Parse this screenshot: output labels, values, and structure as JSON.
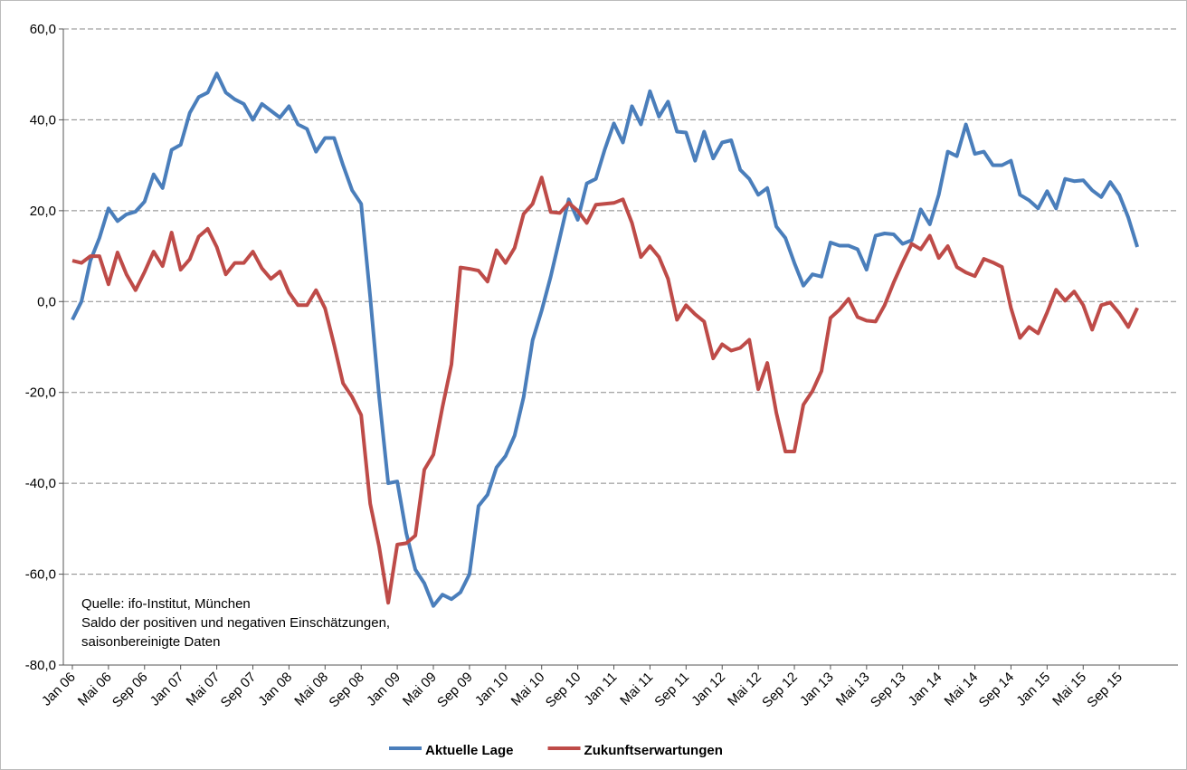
{
  "chart_data": {
    "type": "line",
    "annotation": [
      "Quelle: ifo-Institut, München",
      "Saldo der positiven und negativen Einschätzungen,",
      "saisonbereinigte Daten"
    ],
    "categories": [
      "Jan 06",
      null,
      null,
      null,
      "Mai 06",
      null,
      null,
      null,
      "Sep 06",
      null,
      null,
      null,
      "Jan 07",
      null,
      null,
      null,
      "Mai 07",
      null,
      null,
      null,
      "Sep 07",
      null,
      null,
      null,
      "Jan 08",
      null,
      null,
      null,
      "Mai 08",
      null,
      null,
      null,
      "Sep 08",
      null,
      null,
      null,
      "Jan 09",
      null,
      null,
      null,
      "Mai 09",
      null,
      null,
      null,
      "Sep 09",
      null,
      null,
      null,
      "Jan 10",
      null,
      null,
      null,
      "Mai 10",
      null,
      null,
      null,
      "Sep 10",
      null,
      null,
      null,
      "Jan 11",
      null,
      null,
      null,
      "Mai 11",
      null,
      null,
      null,
      "Sep 11",
      null,
      null,
      null,
      "Jan 12",
      null,
      null,
      null,
      "Mai 12",
      null,
      null,
      null,
      "Sep 12",
      null,
      null,
      null,
      "Jan 13",
      null,
      null,
      null,
      "Mai 13",
      null,
      null,
      null,
      "Sep 13",
      null,
      null,
      null,
      "Jan 14",
      null,
      null,
      null,
      "Mai 14",
      null,
      null,
      null,
      "Sep 14",
      null,
      null,
      null,
      "Jan 15",
      null,
      null,
      null,
      "Mai 15",
      null,
      null,
      null,
      "Sep 15",
      null,
      null
    ],
    "series": [
      {
        "name": "Aktuelle Lage",
        "color": "#4a7ebb",
        "values": [
          -4,
          0,
          9,
          14,
          20.5,
          17.7,
          19.2,
          19.8,
          22,
          28,
          25,
          33.4,
          34.5,
          41.5,
          45,
          46,
          50.2,
          46,
          44.5,
          43.5,
          40,
          43.5,
          42,
          40.5,
          43,
          39,
          38,
          33,
          36,
          36,
          30,
          24.5,
          21.5,
          1,
          -21,
          -40,
          -39.6,
          -51,
          -59,
          -62,
          -67,
          -64.5,
          -65.5,
          -64,
          -60,
          -45,
          -42.5,
          -36.5,
          -34,
          -29.5,
          -21,
          -8.5,
          -2,
          5.5,
          14,
          22.5,
          18,
          26,
          27,
          33.5,
          39.2,
          35,
          43,
          39,
          46.3,
          40.7,
          44,
          37.4,
          37.2,
          31,
          37.4,
          31.5,
          35,
          35.5,
          29,
          27,
          23.5,
          25,
          16.5,
          14,
          8.5,
          3.5,
          6,
          5.5,
          13,
          12.3,
          12.3,
          11.5,
          7,
          14.5,
          15,
          14.8,
          12.7,
          13.5,
          20.3,
          17,
          23.5,
          33,
          32,
          39,
          32.5,
          33,
          30,
          30,
          31,
          23.5,
          22.3,
          20.5,
          24.3,
          20.5,
          27,
          26.5,
          26.7,
          24.5,
          23,
          26.3,
          23.5,
          18.5,
          12
        ]
      },
      {
        "name": "Zukunftserwartungen",
        "color": "#be4b48",
        "values": [
          9,
          8.5,
          10,
          10,
          3.8,
          10.8,
          6,
          2.5,
          6.5,
          11,
          7.8,
          15.2,
          7,
          9.3,
          14.3,
          16,
          12,
          6,
          8.5,
          8.5,
          11,
          7.3,
          5,
          6.6,
          2,
          -0.8,
          -0.8,
          2.5,
          -1.5,
          -9.5,
          -18,
          -21,
          -25,
          -44.5,
          -54,
          -66.3,
          -53.5,
          -53.2,
          -51.5,
          -37,
          -33.7,
          -23.3,
          -13.8,
          7.5,
          7.2,
          6.8,
          4.4,
          11.3,
          8.5,
          11.8,
          19.3,
          21.5,
          27.3,
          19.7,
          19.5,
          21.7,
          20,
          17.3,
          21.3,
          21.5,
          21.7,
          22.5,
          17.3,
          9.8,
          12.2,
          9.8,
          5,
          -4,
          -0.8,
          -2.8,
          -4.4,
          -12.5,
          -9.4,
          -10.8,
          -10.2,
          -8.4,
          -19.3,
          -13.5,
          -24.5,
          -33,
          -33,
          -22.7,
          -19.7,
          -15.3,
          -3.6,
          -1.8,
          0.6,
          -3.4,
          -4.2,
          -4.4,
          -0.8,
          4.2,
          8.6,
          12.7,
          11.5,
          14.5,
          9.6,
          12.2,
          7.6,
          6.4,
          5.6,
          9.4,
          8.6,
          7.6,
          -1.4,
          -8,
          -5.6,
          -7,
          -2.4,
          2.6,
          0.2,
          2.2,
          -0.8,
          -6.2,
          -0.8,
          -0.2,
          -2.6,
          -5.6,
          -1.4
        ]
      }
    ],
    "ylim": [
      -80,
      60
    ],
    "yticks": [
      {
        "value": -80,
        "label": "-80,0"
      },
      {
        "value": -60,
        "label": "-60,0"
      },
      {
        "value": -40,
        "label": "-40,0"
      },
      {
        "value": -20,
        "label": "-20,0"
      },
      {
        "value": 0,
        "label": "0,0"
      },
      {
        "value": 20,
        "label": "20,0"
      },
      {
        "value": 40,
        "label": "40,0"
      },
      {
        "value": 60,
        "label": "60,0"
      }
    ],
    "grid": true,
    "legend": "bottom"
  }
}
